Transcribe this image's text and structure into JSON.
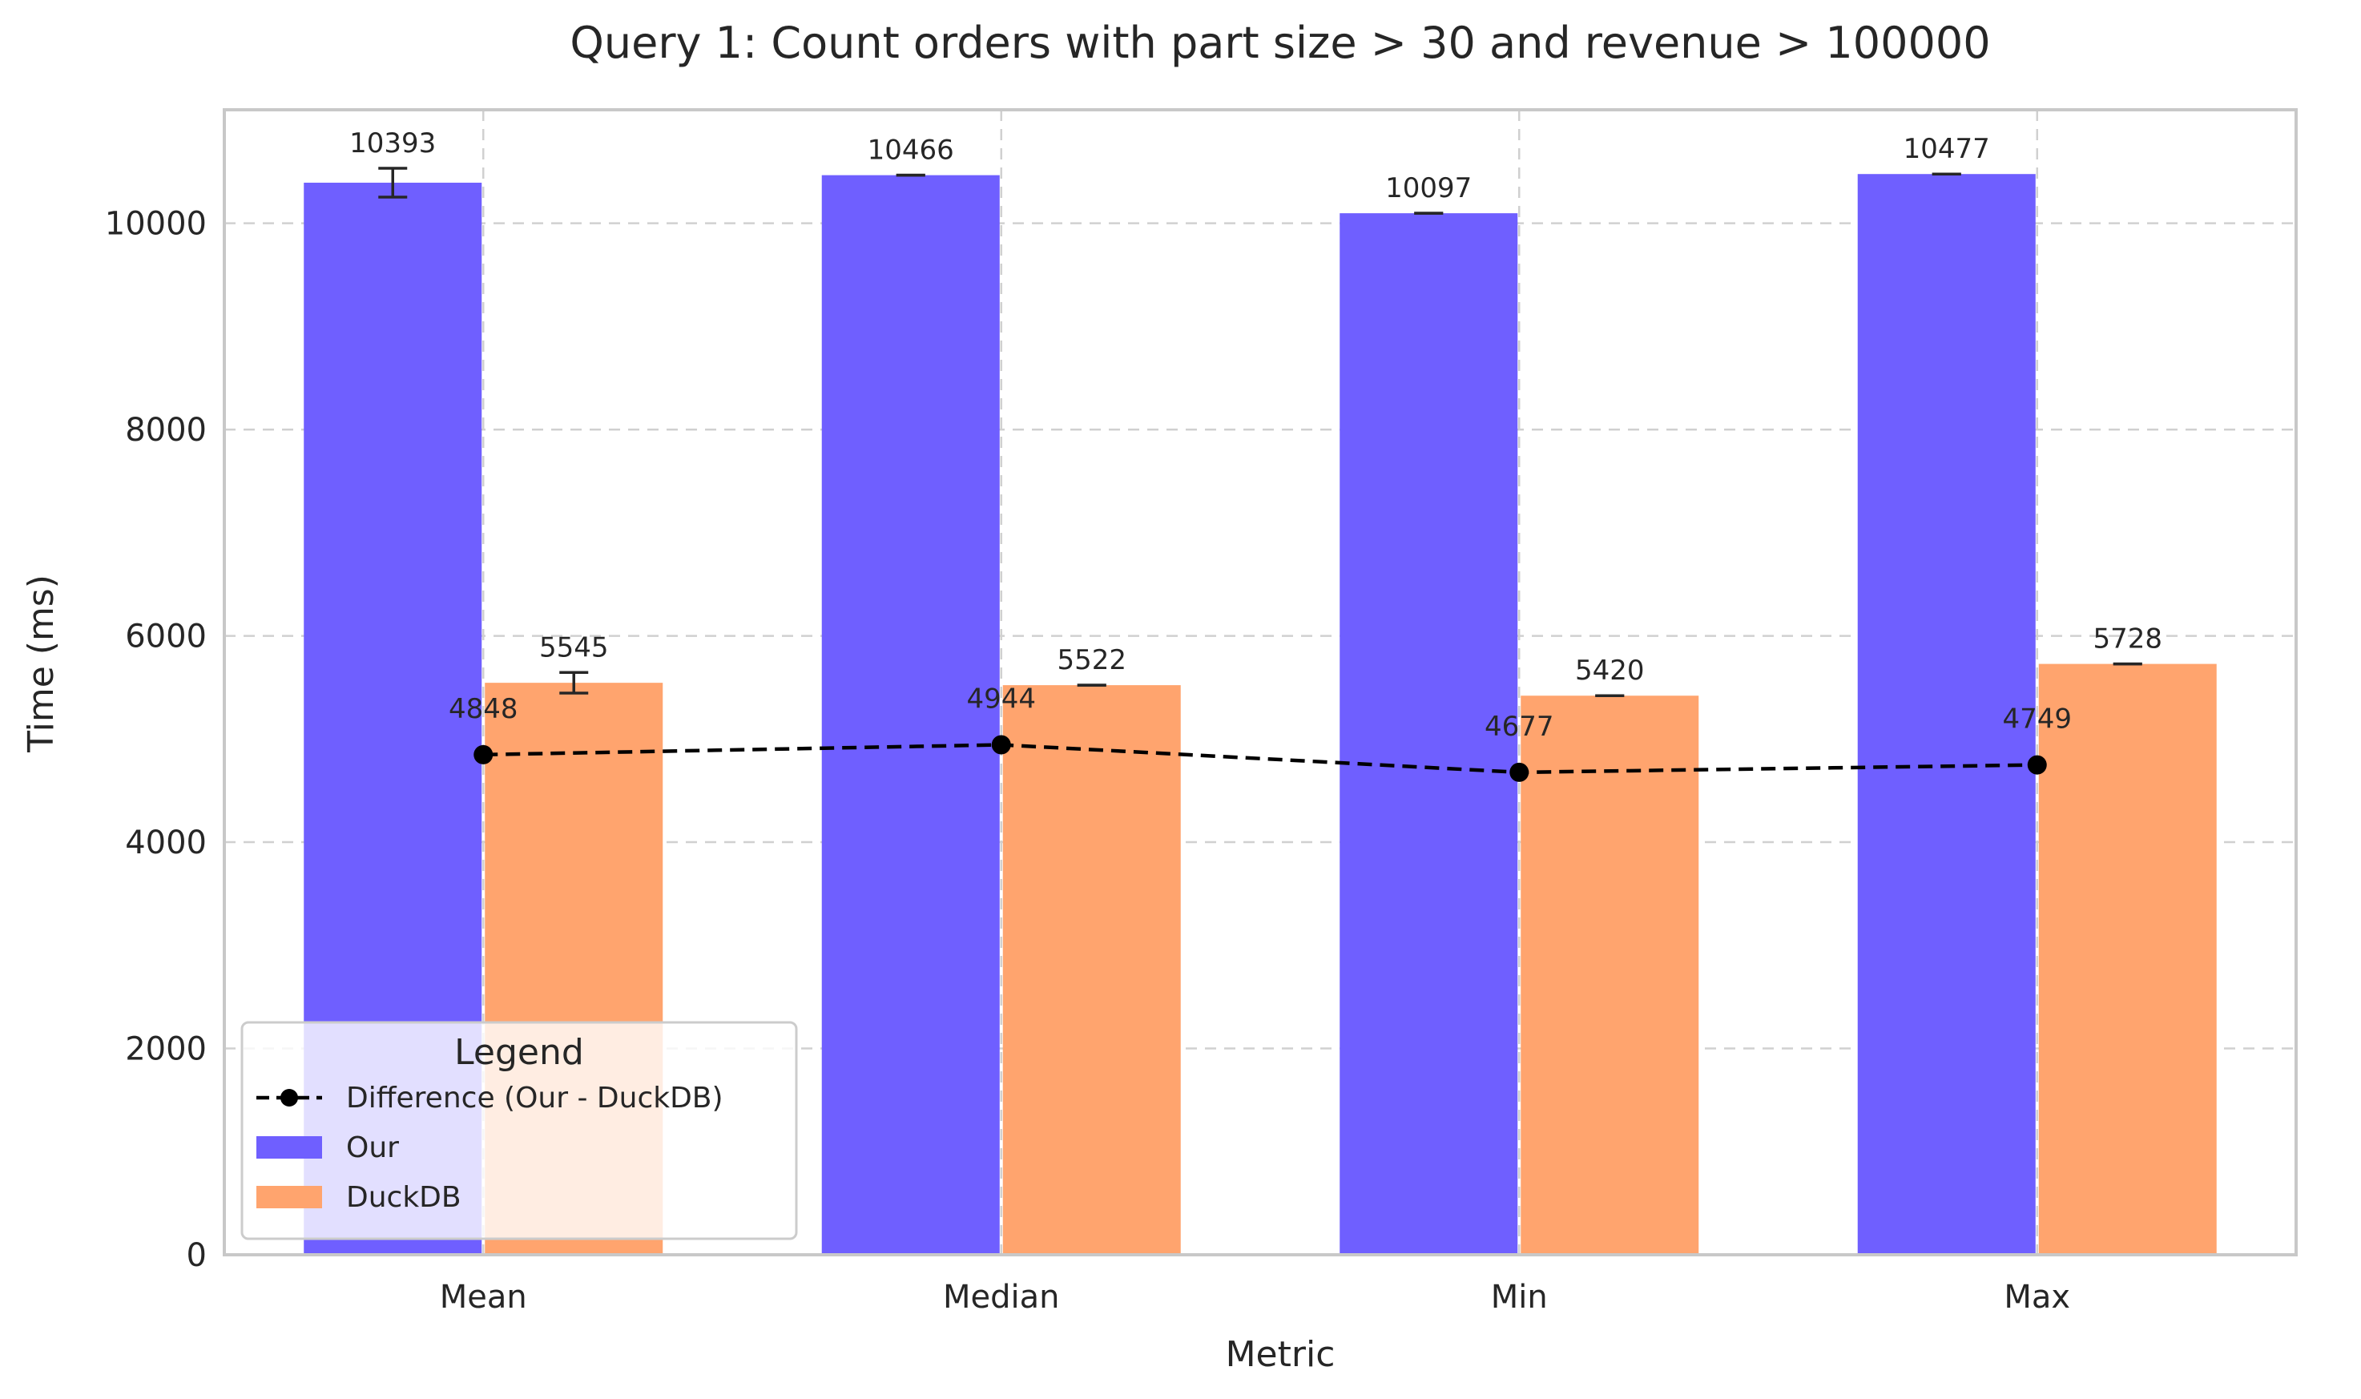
{
  "chart_data": {
    "type": "bar",
    "title": "Query 1: Count orders with part size > 30 and revenue > 100000",
    "xlabel": "Metric",
    "ylabel": "Time (ms)",
    "categories": [
      "Mean",
      "Median",
      "Min",
      "Max"
    ],
    "series": [
      {
        "name": "Our",
        "type": "bar",
        "color": "#6f5fff",
        "values": [
          10393,
          10466,
          10097,
          10477
        ],
        "errors": [
          140,
          0,
          0,
          0
        ],
        "labels": [
          "10393",
          "10466",
          "10097",
          "10477"
        ]
      },
      {
        "name": "DuckDB",
        "type": "bar",
        "color": "#ffa46e",
        "values": [
          5545,
          5522,
          5420,
          5728
        ],
        "errors": [
          100,
          0,
          0,
          0
        ],
        "labels": [
          "5545",
          "5522",
          "5420",
          "5728"
        ]
      },
      {
        "name": "Difference (Our - DuckDB)",
        "type": "line",
        "style": "dashed",
        "marker": "circle",
        "color": "#000000",
        "values": [
          4848,
          4944,
          4677,
          4749
        ],
        "labels": [
          "4848",
          "4944",
          "4677",
          "4749"
        ]
      }
    ],
    "ylim": [
      0,
      11100
    ],
    "yticks": [
      0,
      2000,
      4000,
      6000,
      8000,
      10000
    ],
    "ytick_labels": [
      "0",
      "2000",
      "4000",
      "6000",
      "8000",
      "10000"
    ],
    "grid": true,
    "legend": {
      "title": "Legend",
      "placement": "lower-left",
      "entries": [
        "Difference (Our - DuckDB)",
        "Our",
        "DuckDB"
      ]
    }
  }
}
